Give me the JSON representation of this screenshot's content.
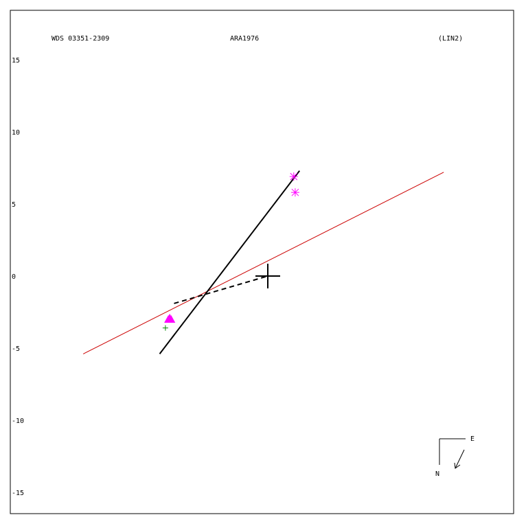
{
  "header": {
    "left": "WDS 03351-2309",
    "center": "ARA1976",
    "right": "(LIN2)"
  },
  "compass": {
    "east": "E",
    "north": "N"
  },
  "colors": {
    "frame": "#000000",
    "fit_line": "#000000",
    "ref_line": "#cc0000",
    "markers": "#ff00ff",
    "green_marker": "#008800"
  },
  "chart_data": {
    "type": "scatter",
    "ylim": [
      -15,
      15
    ],
    "y_ticks": [
      "15",
      "10",
      "5",
      "0",
      "-5",
      "-10",
      "-15"
    ],
    "y_tick_values": [
      15,
      10,
      5,
      0,
      -5,
      -10,
      -15
    ],
    "grid": false,
    "fit_line": [
      [
        -7.5,
        -5.4
      ],
      [
        2.2,
        7.3
      ]
    ],
    "ref_line": [
      [
        -12.8,
        -5.4
      ],
      [
        12.2,
        7.2
      ]
    ],
    "dashed_connector": [
      [
        -6.5,
        -1.9
      ],
      [
        0,
        0
      ]
    ],
    "primary_star": [
      0,
      0
    ],
    "asterisk_points": [
      [
        1.8,
        6.9
      ],
      [
        1.9,
        5.8
      ]
    ],
    "triangle_points": [
      [
        -6.9,
        -3.0
      ],
      [
        -6.7,
        -3.0
      ],
      [
        -6.8,
        -2.9
      ]
    ],
    "green_point": [
      -7.1,
      -3.6
    ]
  }
}
